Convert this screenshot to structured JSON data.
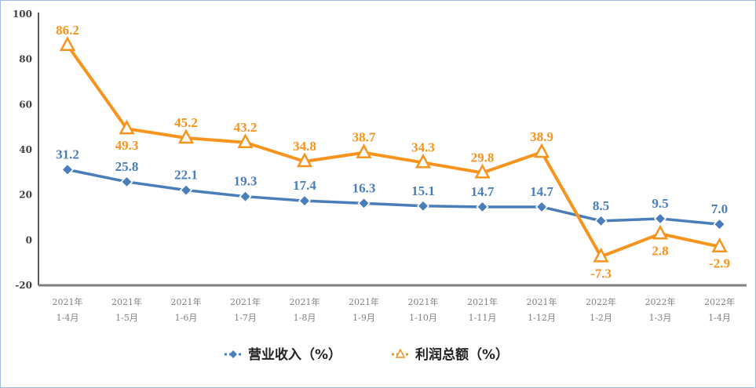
{
  "chart_data": {
    "type": "line",
    "categories": [
      [
        "2021年",
        "1-4月"
      ],
      [
        "2021年",
        "1-5月"
      ],
      [
        "2021年",
        "1-6月"
      ],
      [
        "2021年",
        "1-7月"
      ],
      [
        "2021年",
        "1-8月"
      ],
      [
        "2021年",
        "1-9月"
      ],
      [
        "2021年",
        "1-10月"
      ],
      [
        "2021年",
        "1-11月"
      ],
      [
        "2021年",
        "1-12月"
      ],
      [
        "2022年",
        "1-2月"
      ],
      [
        "2022年",
        "1-3月"
      ],
      [
        "2022年",
        "1-4月"
      ]
    ],
    "series": [
      {
        "name": "营业收入（%）",
        "color": "#4a7ebb",
        "marker": "diamond",
        "values": [
          31.2,
          25.8,
          22.1,
          19.3,
          17.4,
          16.3,
          15.1,
          14.7,
          14.7,
          8.5,
          9.5,
          7.0
        ],
        "labels": [
          "31.2",
          "25.8",
          "22.1",
          "19.3",
          "17.4",
          "16.3",
          "15.1",
          "14.7",
          "14.7",
          "8.5",
          "9.5",
          "7.0"
        ]
      },
      {
        "name": "利润总额（%）",
        "color": "#f7941d",
        "marker": "triangle-open",
        "values": [
          86.2,
          49.3,
          45.2,
          43.2,
          34.8,
          38.7,
          34.3,
          29.8,
          38.9,
          -7.3,
          2.8,
          -2.9
        ],
        "labels": [
          "86.2",
          "49.3",
          "45.2",
          "43.2",
          "34.8",
          "38.7",
          "34.3",
          "29.8",
          "38.9",
          "-7.3",
          "2.8",
          "-2.9"
        ]
      }
    ],
    "yticks": [
      100,
      80,
      60,
      40,
      20,
      0,
      -20
    ],
    "ylim": [
      -20,
      100
    ],
    "grid": false,
    "legend": "bottom",
    "title": "",
    "xlabel": "",
    "ylabel": ""
  }
}
